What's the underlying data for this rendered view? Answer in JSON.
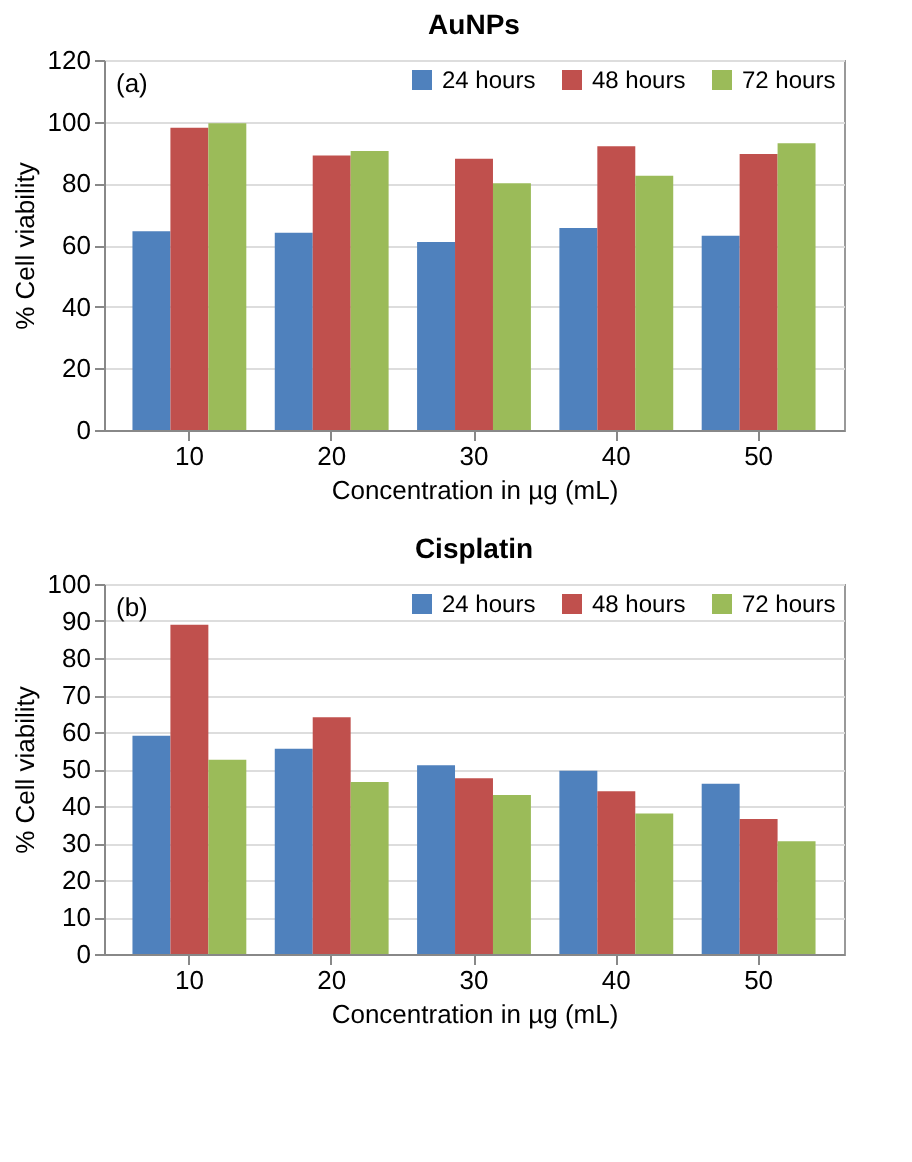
{
  "chart_data": [
    {
      "type": "bar",
      "title": "AuNPs",
      "xlabel": "Concentration in µg (mL)",
      "ylabel": "% Cell viability",
      "annotations": [
        "(a)"
      ],
      "categories": [
        "10",
        "20",
        "30",
        "40",
        "50"
      ],
      "ylim": [
        0,
        120
      ],
      "yticks": [
        0,
        20,
        40,
        60,
        80,
        100,
        120
      ],
      "grid": "y",
      "legend": "top right",
      "series": [
        {
          "name": "24 hours",
          "color": "#4f81bd",
          "values": [
            64.5,
            64,
            61,
            65.5,
            63
          ]
        },
        {
          "name": "48 hours",
          "color": "#c0504d",
          "values": [
            98,
            89,
            88,
            92,
            89.5
          ]
        },
        {
          "name": "72 hours",
          "color": "#9bbb59",
          "values": [
            99.5,
            90.5,
            80,
            82.5,
            93
          ]
        }
      ]
    },
    {
      "type": "bar",
      "title": "Cisplatin",
      "xlabel": "Concentration in µg (mL)",
      "ylabel": "% Cell viability",
      "annotations": [
        "(b)"
      ],
      "categories": [
        "10",
        "20",
        "30",
        "40",
        "50"
      ],
      "ylim": [
        0,
        100
      ],
      "yticks": [
        0,
        10,
        20,
        30,
        40,
        50,
        60,
        70,
        80,
        90,
        100
      ],
      "grid": "y",
      "legend": "top right",
      "series": [
        {
          "name": "24 hours",
          "color": "#4f81bd",
          "values": [
            59,
            55.5,
            51,
            49.5,
            46
          ]
        },
        {
          "name": "48 hours",
          "color": "#c0504d",
          "values": [
            89,
            64,
            47.5,
            44,
            36.5
          ]
        },
        {
          "name": "72 hours",
          "color": "#9bbb59",
          "values": [
            52.5,
            46.5,
            43,
            38,
            30.5
          ]
        }
      ]
    }
  ]
}
